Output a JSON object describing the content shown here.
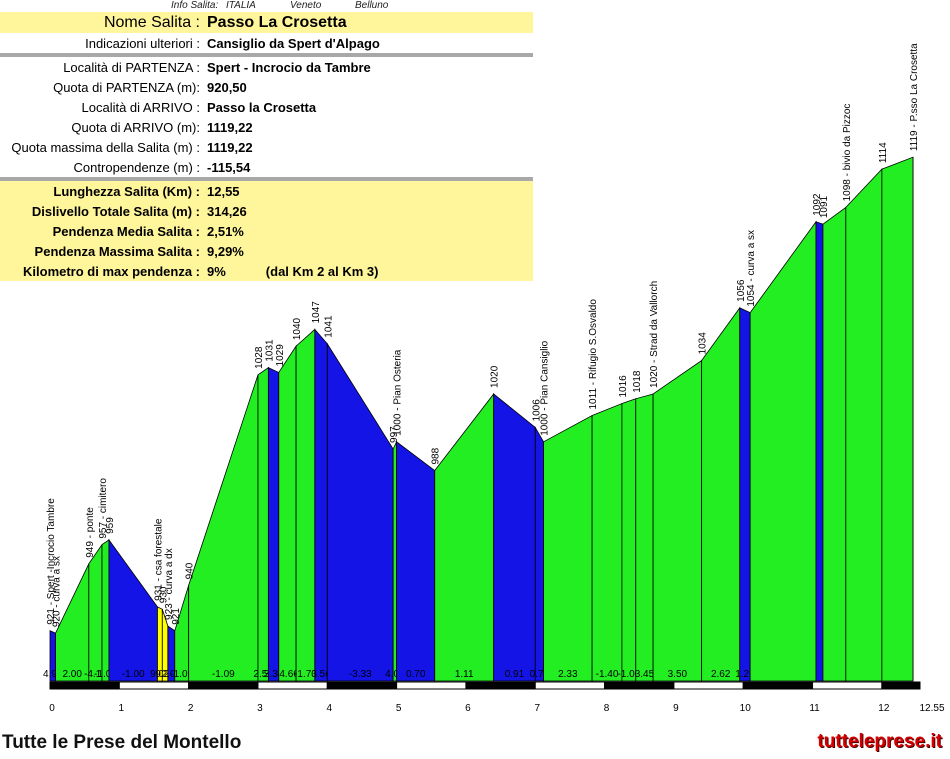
{
  "header": {
    "col1": "Info Salita:",
    "col2": "ITALIA",
    "col3": "Veneto",
    "col4": "Belluno"
  },
  "info_rows": [
    {
      "label": "Nome Salita :",
      "value": "Passo La Crosetta",
      "style": "title"
    },
    {
      "label": "Indicazioni ulteriori :",
      "value": "Cansiglio da Spert d'Alpago",
      "style": "plain"
    },
    {
      "style": "sep"
    },
    {
      "label": "Località di PARTENZA :",
      "value": "Spert - Incrocio da Tambre",
      "style": "plain"
    },
    {
      "label": "Quota di PARTENZA (m):",
      "value": "920,50",
      "style": "plain"
    },
    {
      "label": "Località di ARRIVO :",
      "value": "Passo la Crosetta",
      "style": "plain"
    },
    {
      "label": "Quota di ARRIVO (m):",
      "value": "1119,22",
      "style": "plain"
    },
    {
      "label": "Quota massima della Salita (m) :",
      "value": "1119,22",
      "style": "plain"
    },
    {
      "label": "Contropendenze (m) :",
      "value": "-115,54",
      "style": "plain"
    },
    {
      "style": "sep"
    },
    {
      "label": "Lunghezza Salita (Km) :",
      "value": "12,55",
      "style": "bold"
    },
    {
      "label": "Dislivello Totale Salita (m) :",
      "value": "314,26",
      "style": "bold"
    },
    {
      "label": "Pendenza Media Salita :",
      "value": "2,51%",
      "style": "bold"
    },
    {
      "label": "Pendenza Massima Salita :",
      "value": "9,29%",
      "style": "bold"
    },
    {
      "label": "Kilometro di max pendenza :",
      "value": "9%",
      "extra": "(dal Km 2 al Km 3)",
      "style": "bold"
    }
  ],
  "chart_data": {
    "type": "area",
    "xlabel": "",
    "ylabel": "",
    "xlim": [
      0,
      12.55
    ],
    "ylim": [
      900,
      1122
    ],
    "x_ticks": [
      "0",
      "1",
      "2",
      "3",
      "4",
      "5",
      "6",
      "7",
      "8",
      "9",
      "10",
      "11",
      "12",
      "12.55"
    ],
    "x_tick_values": [
      0,
      1,
      2,
      3,
      4,
      5,
      6,
      7,
      8,
      9,
      10,
      11,
      12,
      12.55
    ],
    "colors": {
      "up": "#22ee22",
      "down": "#1414e6",
      "steep": "#ffff00"
    },
    "points": [
      {
        "x": 0,
        "y": 921,
        "label": "921 - Spert -Incrocio Tambre"
      },
      {
        "x": 0.08,
        "y": 920,
        "label": "920 - curva a sx"
      },
      {
        "x": 0.56,
        "y": 949,
        "label": "949 - ponte"
      },
      {
        "x": 0.75,
        "y": 957,
        "label": "957 - cimitero"
      },
      {
        "x": 0.85,
        "y": 959,
        "label": "959"
      },
      {
        "x": 1.55,
        "y": 931,
        "label": "931 - csa forestale"
      },
      {
        "x": 1.62,
        "y": 930,
        "label": "930"
      },
      {
        "x": 1.7,
        "y": 923,
        "label": "923 - curva a dx"
      },
      {
        "x": 1.8,
        "y": 921,
        "label": "921"
      },
      {
        "x": 2.0,
        "y": 940,
        "label": "940"
      },
      {
        "x": 3.0,
        "y": 1028,
        "label": "1028"
      },
      {
        "x": 3.15,
        "y": 1031,
        "label": "1031"
      },
      {
        "x": 3.3,
        "y": 1029,
        "label": "1029"
      },
      {
        "x": 3.55,
        "y": 1040,
        "label": "1040"
      },
      {
        "x": 3.82,
        "y": 1047,
        "label": "1047"
      },
      {
        "x": 4.0,
        "y": 1041,
        "label": "1041"
      },
      {
        "x": 4.95,
        "y": 997,
        "label": "997"
      },
      {
        "x": 5.0,
        "y": 1000,
        "label": "1000 - Pian Osteria"
      },
      {
        "x": 5.55,
        "y": 988,
        "label": "988"
      },
      {
        "x": 6.4,
        "y": 1020,
        "label": "1020"
      },
      {
        "x": 7.0,
        "y": 1006,
        "label": "1006"
      },
      {
        "x": 7.12,
        "y": 1000,
        "label": "1000 - Pian Cansiglio"
      },
      {
        "x": 7.82,
        "y": 1011,
        "label": "1011 - Rifugio S.Osvaldo"
      },
      {
        "x": 8.25,
        "y": 1016,
        "label": "1016"
      },
      {
        "x": 8.45,
        "y": 1018,
        "label": "1018"
      },
      {
        "x": 8.7,
        "y": 1020,
        "label": "1020 - Strad da Vallorch"
      },
      {
        "x": 9.4,
        "y": 1034,
        "label": "1034"
      },
      {
        "x": 9.95,
        "y": 1056,
        "label": "1056"
      },
      {
        "x": 10.1,
        "y": 1054,
        "label": "1054 - curva a sx"
      },
      {
        "x": 11.05,
        "y": 1092,
        "label": "1092"
      },
      {
        "x": 11.15,
        "y": 1091,
        "label": "1091"
      },
      {
        "x": 11.48,
        "y": 1098,
        "label": "1098 - bivio da Pizzoc"
      },
      {
        "x": 12.0,
        "y": 1114,
        "label": "1114"
      },
      {
        "x": 12.45,
        "y": 1119,
        "label": "1119 - P.sso La Crosetta"
      }
    ],
    "segment_gradients": [
      "4.94",
      "2.00",
      "-4.10",
      "-1.00",
      "-1.00",
      "9.05",
      "9.26",
      "2.00",
      "-1.05",
      "-1.09",
      "2.50",
      "3.33",
      "-4.66",
      "-1.70",
      "3.56",
      "-3.33",
      "4.00",
      "0.70",
      "1.11",
      "0.91",
      "0.74",
      "2.33",
      "-1.40",
      "-1.00",
      "3.45",
      "3.50",
      "2.62",
      "1.25"
    ]
  },
  "footer": {
    "left": "Tutte le Prese del Montello",
    "right": "tutteleprese.it"
  }
}
